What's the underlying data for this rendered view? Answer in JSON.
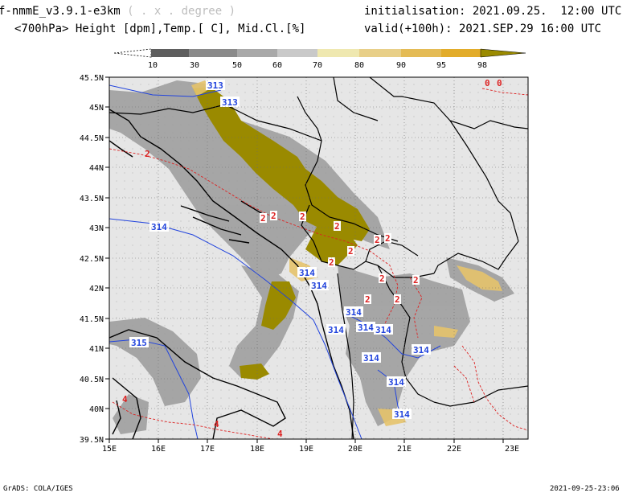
{
  "header": {
    "model": "f-nmmE_v3.9.1-e3km",
    "units_note": "( . x . degree )",
    "subtitle": "<700hPa> Height [dpm],Temp.[ C], Mid.Cl.[%]",
    "initialisation": "initialisation: 2021.09.25.  12:00 UTC",
    "valid": "valid(+100h): 2021.SEP.29 16:00 UTC"
  },
  "colorbar": {
    "labels": [
      "10",
      "30",
      "50",
      "60",
      "70",
      "80",
      "90",
      "95",
      "98"
    ],
    "colors": [
      "#ffffff",
      "#5e5e5e",
      "#8a8a8a",
      "#a9a9a9",
      "#c9c9c9",
      "#efe8b0",
      "#e8cf88",
      "#e4bb55",
      "#e2ac2a",
      "#9a8a00"
    ]
  },
  "map": {
    "lat_labels": [
      "45.5N",
      "45N",
      "44.5N",
      "44N",
      "43.5N",
      "43N",
      "42.5N",
      "42N",
      "41.5N",
      "41N",
      "40.5N",
      "40N",
      "39.5N"
    ],
    "lon_labels": [
      "15E",
      "16E",
      "17E",
      "18E",
      "19E",
      "20E",
      "21E",
      "22E",
      "23E"
    ],
    "contours": {
      "height": [
        {
          "label": "313"
        },
        {
          "label": "313"
        },
        {
          "label": "314"
        },
        {
          "label": "314"
        },
        {
          "label": "314"
        },
        {
          "label": "314"
        },
        {
          "label": "314"
        },
        {
          "label": "314"
        },
        {
          "label": "314"
        },
        {
          "label": "314"
        },
        {
          "label": "314"
        },
        {
          "label": "314"
        },
        {
          "label": "315"
        },
        {
          "label": "314"
        }
      ],
      "temperature": [
        {
          "label": "2"
        },
        {
          "label": "2"
        },
        {
          "label": "2"
        },
        {
          "label": "2"
        },
        {
          "label": "2"
        },
        {
          "label": "2"
        },
        {
          "label": "2"
        },
        {
          "label": "2"
        },
        {
          "label": "2"
        },
        {
          "label": "2"
        },
        {
          "label": "2"
        },
        {
          "label": "2"
        },
        {
          "label": "2"
        },
        {
          "label": "4"
        },
        {
          "label": "4"
        },
        {
          "label": "0"
        },
        {
          "label": "0"
        },
        {
          "label": "4"
        }
      ]
    },
    "colors": {
      "land": "#e6e6e6",
      "cloud_dark": "#8e8e8e",
      "cloud_olive": "#9a8a00",
      "cloud_tan": "#e6c36b",
      "height_line": "#2244dd",
      "temp_line": "#dd2222",
      "border": "#000000"
    }
  },
  "footer": {
    "credit": "GrADS: COLA/IGES",
    "timestamp": "2021-09-25-23:06"
  }
}
